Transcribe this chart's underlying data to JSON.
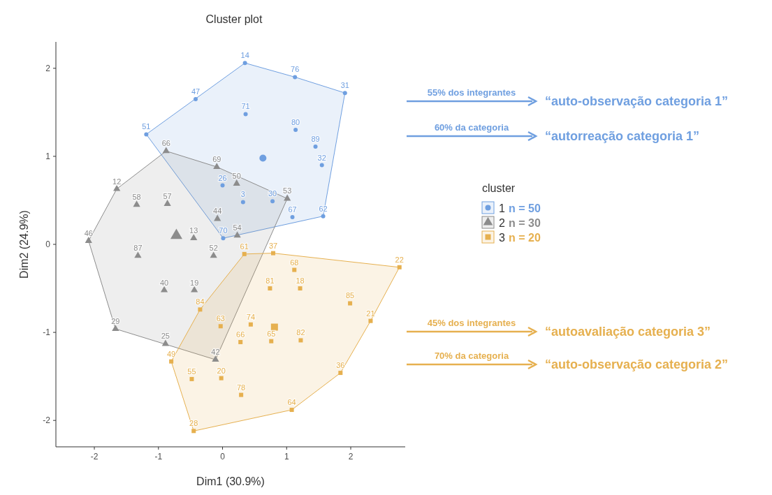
{
  "chart_data": {
    "type": "scatter",
    "title": "Cluster plot",
    "xlabel": "Dim1 (30.9%)",
    "ylabel": "Dim2 (24.9%)",
    "legend_title": "cluster",
    "legend": "right",
    "grid": false,
    "xlim": [
      -2.6,
      2.85
    ],
    "xticks": [
      -2,
      -1,
      0,
      1,
      2
    ],
    "ylim": [
      -2.3,
      2.3
    ],
    "yticks": [
      -2,
      -1,
      0,
      1,
      2
    ],
    "series": [
      {
        "name": "1",
        "color": "#6f9fe0",
        "marker": "circle",
        "x": [
          0.35,
          1.13,
          1.91,
          -0.42,
          0.36,
          1.14,
          1.45,
          1.55,
          -1.19,
          0.0,
          0.32,
          0.78,
          1.09,
          1.57,
          0.01
        ],
        "values": [
          2.06,
          1.9,
          1.72,
          1.65,
          1.48,
          1.3,
          1.11,
          0.9,
          1.25,
          0.67,
          0.48,
          0.49,
          0.31,
          0.32,
          0.07
        ]
      },
      {
        "name": "2",
        "color": "#8c8c8c",
        "marker": "triangle",
        "x": [
          -0.88,
          -0.09,
          0.22,
          1.01,
          -1.65,
          -1.34,
          -0.86,
          -0.08,
          0.23,
          -2.09,
          -0.45,
          -0.14,
          -1.32,
          -0.91,
          -0.44,
          -1.67,
          -0.89,
          -0.11
        ],
        "values": [
          1.06,
          0.88,
          0.69,
          0.52,
          0.63,
          0.45,
          0.46,
          0.29,
          0.1,
          0.04,
          0.07,
          -0.13,
          -0.13,
          -0.52,
          -0.52,
          -0.96,
          -1.13,
          -1.31
        ]
      },
      {
        "name": "3",
        "color": "#e6b04f",
        "marker": "square",
        "x": [
          0.34,
          0.79,
          1.12,
          0.74,
          1.21,
          2.76,
          1.99,
          2.31,
          -0.35,
          -0.03,
          0.44,
          0.28,
          0.76,
          1.22,
          -0.8,
          -0.48,
          -0.02,
          0.29,
          1.84,
          1.08,
          -0.45
        ],
        "values": [
          -0.11,
          -0.1,
          -0.29,
          -0.5,
          -0.5,
          -0.26,
          -0.67,
          -0.87,
          -0.74,
          -0.93,
          -0.91,
          -1.11,
          -1.1,
          -1.09,
          -1.33,
          -1.53,
          -1.52,
          -1.71,
          -1.46,
          -1.88,
          -2.12
        ]
      },
      {
        "color": "#6f9fe0",
        "marker": "circle",
        "x": [
          0.63
        ],
        "values": [
          0.98
        ]
      },
      {
        "color": "#8c8c8c",
        "marker": "triangle",
        "x": [
          -0.72
        ],
        "values": [
          0.1
        ]
      },
      {
        "color": "#e6b04f",
        "marker": "square",
        "x": [
          0.81
        ],
        "values": [
          -0.94
        ]
      }
    ],
    "annotations": [
      "n = 50",
      "n = 30",
      "n = 20",
      "55% dos integrantes",
      "“auto-observação categoria 1”",
      "60% da categoria",
      "“autorreação categoria 1”",
      "45% dos integrantes",
      "“autoavaliação categoria 3”",
      "70% da categoria",
      "“auto-observação categoria 2”",
      {
        "text": "14",
        "x": 0.35,
        "y": 2.06
      },
      {
        "text": "76",
        "x": 1.13,
        "y": 1.9
      },
      {
        "text": "31",
        "x": 1.91,
        "y": 1.72
      },
      {
        "text": "47",
        "x": -0.42,
        "y": 1.65
      },
      {
        "text": "71",
        "x": 0.36,
        "y": 1.48
      },
      {
        "text": "80",
        "x": 1.14,
        "y": 1.3
      },
      {
        "text": "89",
        "x": 1.45,
        "y": 1.11
      },
      {
        "text": "32",
        "x": 1.55,
        "y": 0.9
      },
      {
        "text": "51",
        "x": -1.19,
        "y": 1.25
      },
      {
        "text": "26",
        "x": 0.0,
        "y": 0.67
      },
      {
        "text": "3",
        "x": 0.32,
        "y": 0.48
      },
      {
        "text": "30",
        "x": 0.78,
        "y": 0.49
      },
      {
        "text": "67",
        "x": 1.09,
        "y": 0.31
      },
      {
        "text": "62",
        "x": 1.57,
        "y": 0.32
      },
      {
        "text": "70",
        "x": 0.01,
        "y": 0.07
      },
      {
        "text": "66",
        "x": -0.88,
        "y": 1.06
      },
      {
        "text": "69",
        "x": -0.09,
        "y": 0.88
      },
      {
        "text": "50",
        "x": 0.22,
        "y": 0.69
      },
      {
        "text": "53",
        "x": 1.01,
        "y": 0.52
      },
      {
        "text": "12",
        "x": -1.65,
        "y": 0.63
      },
      {
        "text": "58",
        "x": -1.34,
        "y": 0.45
      },
      {
        "text": "57",
        "x": -0.86,
        "y": 0.46
      },
      {
        "text": "44",
        "x": -0.08,
        "y": 0.29
      },
      {
        "text": "54",
        "x": 0.23,
        "y": 0.1
      },
      {
        "text": "46",
        "x": -2.09,
        "y": 0.04
      },
      {
        "text": "13",
        "x": -0.45,
        "y": 0.07
      },
      {
        "text": "52",
        "x": -0.14,
        "y": -0.13
      },
      {
        "text": "87",
        "x": -1.32,
        "y": -0.13
      },
      {
        "text": "40",
        "x": -0.91,
        "y": -0.52
      },
      {
        "text": "19",
        "x": -0.44,
        "y": -0.52
      },
      {
        "text": "29",
        "x": -1.67,
        "y": -0.96
      },
      {
        "text": "25",
        "x": -0.89,
        "y": -1.13
      },
      {
        "text": "42",
        "x": -0.11,
        "y": -1.31
      },
      {
        "text": "61",
        "x": 0.34,
        "y": -0.11
      },
      {
        "text": "37",
        "x": 0.79,
        "y": -0.1
      },
      {
        "text": "68",
        "x": 1.12,
        "y": -0.29
      },
      {
        "text": "81",
        "x": 0.74,
        "y": -0.5
      },
      {
        "text": "18",
        "x": 1.21,
        "y": -0.5
      },
      {
        "text": "22",
        "x": 2.76,
        "y": -0.26
      },
      {
        "text": "85",
        "x": 1.99,
        "y": -0.67
      },
      {
        "text": "21",
        "x": 2.31,
        "y": -0.87
      },
      {
        "text": "84",
        "x": -0.35,
        "y": -0.74
      },
      {
        "text": "63",
        "x": -0.03,
        "y": -0.93
      },
      {
        "text": "74",
        "x": 0.44,
        "y": -0.91
      },
      {
        "text": "66",
        "x": 0.28,
        "y": -1.11
      },
      {
        "text": "65",
        "x": 0.76,
        "y": -1.1
      },
      {
        "text": "82",
        "x": 1.22,
        "y": -1.09
      },
      {
        "text": "49",
        "x": -0.8,
        "y": -1.33
      },
      {
        "text": "55",
        "x": -0.48,
        "y": -1.53
      },
      {
        "text": "20",
        "x": -0.02,
        "y": -1.52
      },
      {
        "text": "78",
        "x": 0.29,
        "y": -1.71
      },
      {
        "text": "36",
        "x": 1.84,
        "y": -1.46
      },
      {
        "text": "64",
        "x": 1.08,
        "y": -1.88
      },
      {
        "text": "28",
        "x": -0.45,
        "y": -2.12
      }
    ]
  }
}
